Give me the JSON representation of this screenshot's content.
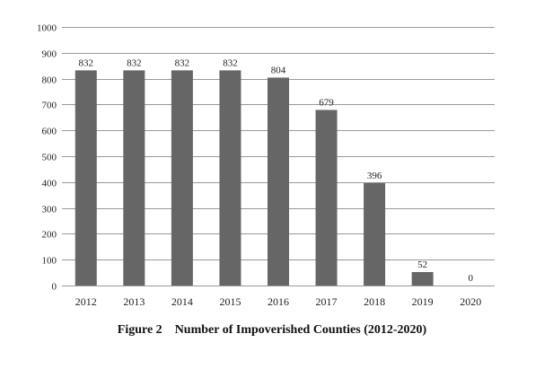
{
  "chart_data": {
    "type": "bar",
    "title": "Number of Impoverished Counties (2012-2020)",
    "figure_label": "Figure 2",
    "xlabel": "",
    "ylabel": "",
    "categories": [
      "2012",
      "2013",
      "2014",
      "2015",
      "2016",
      "2017",
      "2018",
      "2019",
      "2020"
    ],
    "values": [
      832,
      832,
      832,
      832,
      804,
      679,
      396,
      52,
      0
    ],
    "ylim": [
      0,
      1000
    ],
    "yticks": [
      0,
      100,
      200,
      300,
      400,
      500,
      600,
      700,
      800,
      900,
      1000
    ],
    "grid": true,
    "legend": "none",
    "bar_color": "#666666",
    "grid_color": "#999999"
  }
}
